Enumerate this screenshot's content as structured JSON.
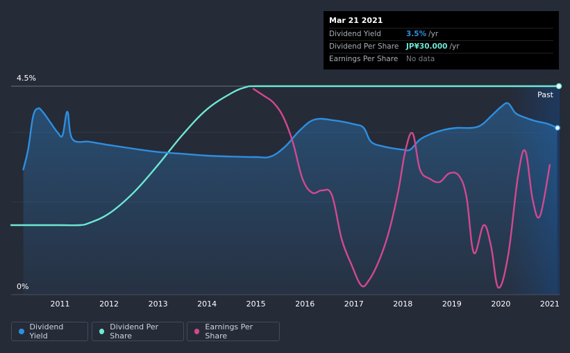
{
  "tooltip": {
    "date": "Mar 21 2021",
    "rows": [
      {
        "label": "Dividend Yield",
        "value": "3.5%",
        "unit": "/yr",
        "color": "#2d8fe0"
      },
      {
        "label": "Dividend Per Share",
        "value": "JP¥30.000",
        "unit": "/yr",
        "color": "#6ee8d4"
      },
      {
        "label": "Earnings Per Share",
        "value": "No data",
        "unit": "",
        "color": "#7a7f8a"
      }
    ]
  },
  "legend": [
    {
      "label": "Dividend Yield",
      "color": "#2d8fe0"
    },
    {
      "label": "Dividend Per Share",
      "color": "#6ee8d4"
    },
    {
      "label": "Earnings Per Share",
      "color": "#d2498f"
    }
  ],
  "past_label": "Past",
  "chart_data": {
    "type": "line",
    "title": "",
    "xlabel": "",
    "ylabel": "",
    "xlim": [
      2010.0,
      2021.2
    ],
    "ylim": [
      0,
      4.5
    ],
    "y_tick_labels": [
      "0%",
      "4.5%"
    ],
    "x_tick_labels": [
      "2011",
      "2012",
      "2013",
      "2014",
      "2015",
      "2016",
      "2017",
      "2018",
      "2019",
      "2020",
      "2021"
    ],
    "series": [
      {
        "name": "Dividend Yield",
        "color": "#2d8fe0",
        "points": [
          [
            2010.25,
            2.7
          ],
          [
            2010.35,
            3.15
          ],
          [
            2010.45,
            3.85
          ],
          [
            2010.55,
            4.02
          ],
          [
            2010.65,
            3.94
          ],
          [
            2010.8,
            3.72
          ],
          [
            2010.95,
            3.5
          ],
          [
            2011.05,
            3.44
          ],
          [
            2011.15,
            3.95
          ],
          [
            2011.25,
            3.36
          ],
          [
            2011.6,
            3.3
          ],
          [
            2012.0,
            3.23
          ],
          [
            2012.5,
            3.15
          ],
          [
            2013.0,
            3.08
          ],
          [
            2013.5,
            3.04
          ],
          [
            2014.0,
            3.0
          ],
          [
            2014.5,
            2.98
          ],
          [
            2015.0,
            2.97
          ],
          [
            2015.3,
            2.98
          ],
          [
            2015.6,
            3.2
          ],
          [
            2015.9,
            3.55
          ],
          [
            2016.2,
            3.78
          ],
          [
            2016.6,
            3.76
          ],
          [
            2017.0,
            3.68
          ],
          [
            2017.2,
            3.6
          ],
          [
            2017.35,
            3.3
          ],
          [
            2017.6,
            3.2
          ],
          [
            2017.85,
            3.15
          ],
          [
            2018.0,
            3.13
          ],
          [
            2018.15,
            3.13
          ],
          [
            2018.35,
            3.35
          ],
          [
            2018.6,
            3.48
          ],
          [
            2018.85,
            3.56
          ],
          [
            2019.1,
            3.6
          ],
          [
            2019.4,
            3.6
          ],
          [
            2019.6,
            3.66
          ],
          [
            2019.8,
            3.85
          ],
          [
            2020.0,
            4.05
          ],
          [
            2020.15,
            4.13
          ],
          [
            2020.3,
            3.92
          ],
          [
            2020.5,
            3.82
          ],
          [
            2020.7,
            3.75
          ],
          [
            2020.95,
            3.69
          ],
          [
            2021.15,
            3.6
          ]
        ]
      },
      {
        "name": "Dividend Per Share",
        "color": "#6ee8d4",
        "points": [
          [
            2010.0,
            1.5
          ],
          [
            2011.0,
            1.5
          ],
          [
            2011.4,
            1.5
          ],
          [
            2011.6,
            1.55
          ],
          [
            2012.0,
            1.75
          ],
          [
            2012.5,
            2.2
          ],
          [
            2013.0,
            2.8
          ],
          [
            2013.5,
            3.45
          ],
          [
            2014.0,
            4.0
          ],
          [
            2014.5,
            4.35
          ],
          [
            2014.8,
            4.48
          ],
          [
            2015.0,
            4.5
          ],
          [
            2016.0,
            4.5
          ],
          [
            2018.0,
            4.5
          ],
          [
            2020.0,
            4.5
          ],
          [
            2021.2,
            4.5
          ]
        ]
      },
      {
        "name": "Earnings Per Share",
        "color": "#d2498f",
        "points": [
          [
            2014.95,
            4.44
          ],
          [
            2015.15,
            4.3
          ],
          [
            2015.35,
            4.15
          ],
          [
            2015.55,
            3.85
          ],
          [
            2015.75,
            3.3
          ],
          [
            2015.95,
            2.5
          ],
          [
            2016.15,
            2.2
          ],
          [
            2016.35,
            2.25
          ],
          [
            2016.55,
            2.15
          ],
          [
            2016.75,
            1.2
          ],
          [
            2016.95,
            0.65
          ],
          [
            2017.15,
            0.2
          ],
          [
            2017.3,
            0.3
          ],
          [
            2017.5,
            0.7
          ],
          [
            2017.7,
            1.3
          ],
          [
            2017.9,
            2.2
          ],
          [
            2018.05,
            3.1
          ],
          [
            2018.2,
            3.48
          ],
          [
            2018.35,
            2.7
          ],
          [
            2018.55,
            2.5
          ],
          [
            2018.75,
            2.43
          ],
          [
            2018.95,
            2.62
          ],
          [
            2019.15,
            2.56
          ],
          [
            2019.3,
            2.1
          ],
          [
            2019.45,
            0.9
          ],
          [
            2019.65,
            1.5
          ],
          [
            2019.8,
            1.05
          ],
          [
            2019.95,
            0.15
          ],
          [
            2020.15,
            0.85
          ],
          [
            2020.35,
            2.55
          ],
          [
            2020.5,
            3.1
          ],
          [
            2020.65,
            2.05
          ],
          [
            2020.8,
            1.7
          ],
          [
            2021.0,
            2.8
          ]
        ]
      }
    ]
  }
}
